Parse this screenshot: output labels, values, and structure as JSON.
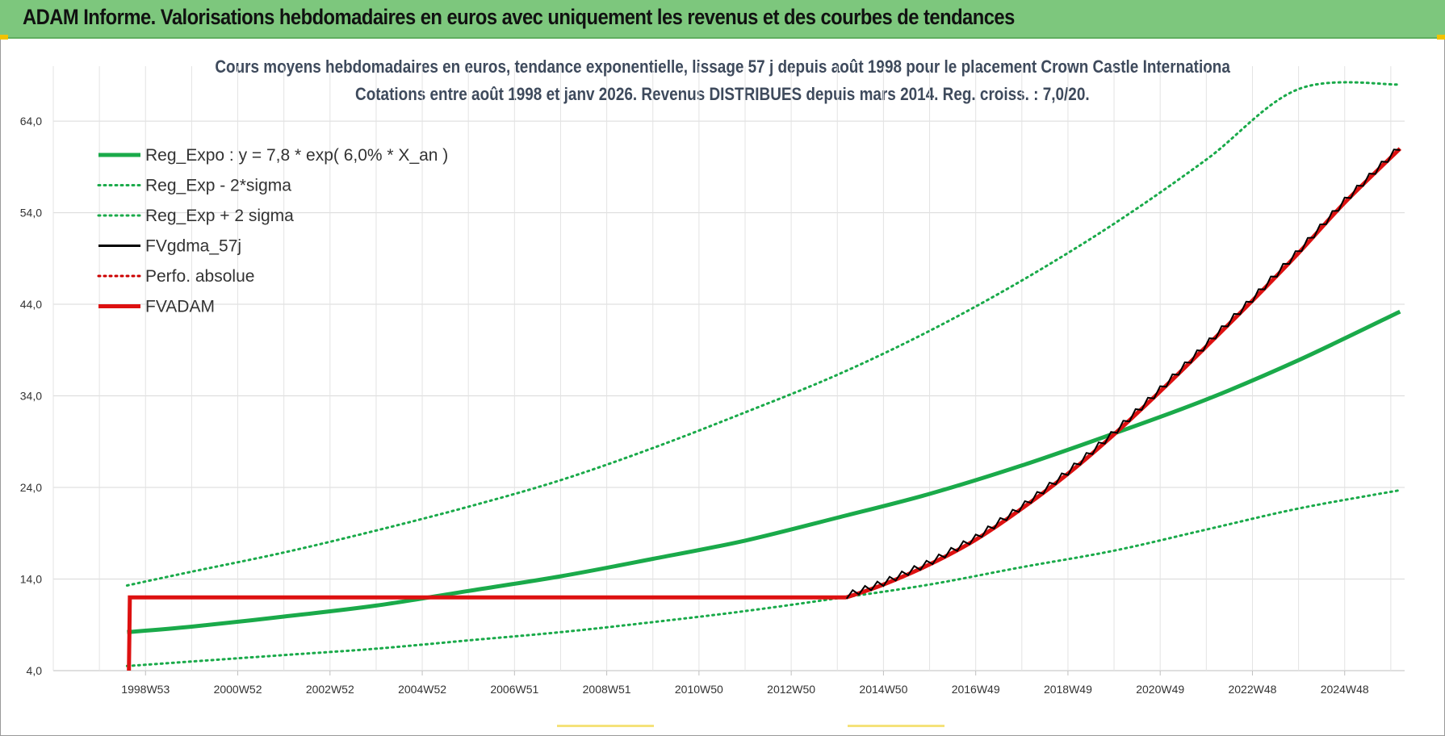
{
  "banner": {
    "title": "ADAM Informe. Valorisations hebdomadaires en euros avec uniquement les revenus et des courbes de tendances"
  },
  "chart_data": {
    "type": "line",
    "title": "Cours moyens hebdomadaires en euros, tendance exponentielle, lissage 57 j depuis août 1998 pour le placement Crown Castle Internationa",
    "subtitle": "Cotations entre août 1998 et janv 2026. Revenus DISTRIBUES depuis mars 2014. Reg. croiss. : 7,0/20.",
    "xlabel": "",
    "ylabel": "",
    "ylim": [
      4,
      70
    ],
    "xlim": [
      1997.0,
      2026.3
    ],
    "grid": true,
    "legend_position": "top-left",
    "x_ticks": [
      {
        "x": 1999.0,
        "label": "1998W53"
      },
      {
        "x": 2001.0,
        "label": "2000W52"
      },
      {
        "x": 2003.0,
        "label": "2002W52"
      },
      {
        "x": 2005.0,
        "label": "2004W52"
      },
      {
        "x": 2007.0,
        "label": "2006W51"
      },
      {
        "x": 2009.0,
        "label": "2008W51"
      },
      {
        "x": 2011.0,
        "label": "2010W50"
      },
      {
        "x": 2013.0,
        "label": "2012W50"
      },
      {
        "x": 2015.0,
        "label": "2014W50"
      },
      {
        "x": 2017.0,
        "label": "2016W49"
      },
      {
        "x": 2019.0,
        "label": "2018W49"
      },
      {
        "x": 2021.0,
        "label": "2020W49"
      },
      {
        "x": 2023.0,
        "label": "2022W48"
      },
      {
        "x": 2025.0,
        "label": "2024W48"
      }
    ],
    "y_ticks": [
      {
        "y": 4,
        "label": "4,0"
      },
      {
        "y": 14,
        "label": "14,0"
      },
      {
        "y": 24,
        "label": "24,0"
      },
      {
        "y": 34,
        "label": "34,0"
      },
      {
        "y": 44,
        "label": "44,0"
      },
      {
        "y": 54,
        "label": "54,0"
      },
      {
        "y": 64,
        "label": "64,0"
      }
    ],
    "series": [
      {
        "name": "Reg_Expo : y = 7,8 * exp( 6,0% *  X_an )",
        "style": "solid-thick",
        "color": "#1aaa4a",
        "x": [
          1998.6,
          2000,
          2002,
          2004,
          2006,
          2008,
          2010,
          2012,
          2014,
          2016,
          2018,
          2020,
          2022,
          2024,
          2026.2
        ],
        "values": [
          8.2,
          8.8,
          9.9,
          11.1,
          12.7,
          14.3,
          16.2,
          18.2,
          20.7,
          23.3,
          26.4,
          29.9,
          33.6,
          37.9,
          43.2
        ]
      },
      {
        "name": "Reg_Exp - 2*sigma",
        "style": "dotted",
        "color": "#1aaa4a",
        "x": [
          1998.6,
          2000,
          2002,
          2004,
          2006,
          2008,
          2010,
          2012,
          2014,
          2016,
          2018,
          2020,
          2022,
          2024,
          2026.2
        ],
        "values": [
          4.5,
          5.0,
          5.7,
          6.4,
          7.3,
          8.2,
          9.3,
          10.5,
          11.9,
          13.4,
          15.3,
          17.1,
          19.4,
          21.7,
          23.7
        ]
      },
      {
        "name": "Reg_Exp + 2 sigma",
        "style": "dotted",
        "color": "#1aaa4a",
        "x": [
          1998.6,
          2000,
          2002,
          2004,
          2006,
          2008,
          2010,
          2012,
          2014,
          2016,
          2018,
          2020,
          2022,
          2024,
          2026.2
        ],
        "values": [
          13.3,
          14.8,
          16.9,
          19.3,
          21.9,
          24.8,
          28.3,
          32.2,
          36.3,
          41.1,
          46.6,
          52.8,
          59.8,
          67.5,
          68.0
        ]
      },
      {
        "name": "FVgdma_57j",
        "style": "solid",
        "color": "#000000",
        "x": [
          2014.2,
          2015,
          2016,
          2017,
          2018,
          2019,
          2020,
          2021,
          2022,
          2023,
          2024,
          2025,
          2026.2
        ],
        "values": [
          12.2,
          13.6,
          15.8,
          18.5,
          21.9,
          25.7,
          30.0,
          34.7,
          39.6,
          44.6,
          49.8,
          55.3,
          61.2
        ]
      },
      {
        "name": "Perfo. absolue",
        "style": "dotted",
        "color": "#cc0000",
        "x": [],
        "values": []
      },
      {
        "name": "FVADAM",
        "style": "solid-thick",
        "color": "#dd1111",
        "x": [
          1998.64,
          1998.66,
          2014.2,
          2015,
          2016,
          2017,
          2018,
          2019,
          2020,
          2021,
          2022,
          2023,
          2024,
          2025,
          2026.2
        ],
        "values": [
          4.0,
          12.0,
          12.0,
          13.4,
          15.6,
          18.3,
          21.7,
          25.5,
          29.8,
          34.5,
          39.4,
          44.4,
          49.6,
          55.1,
          61.0
        ]
      }
    ]
  }
}
